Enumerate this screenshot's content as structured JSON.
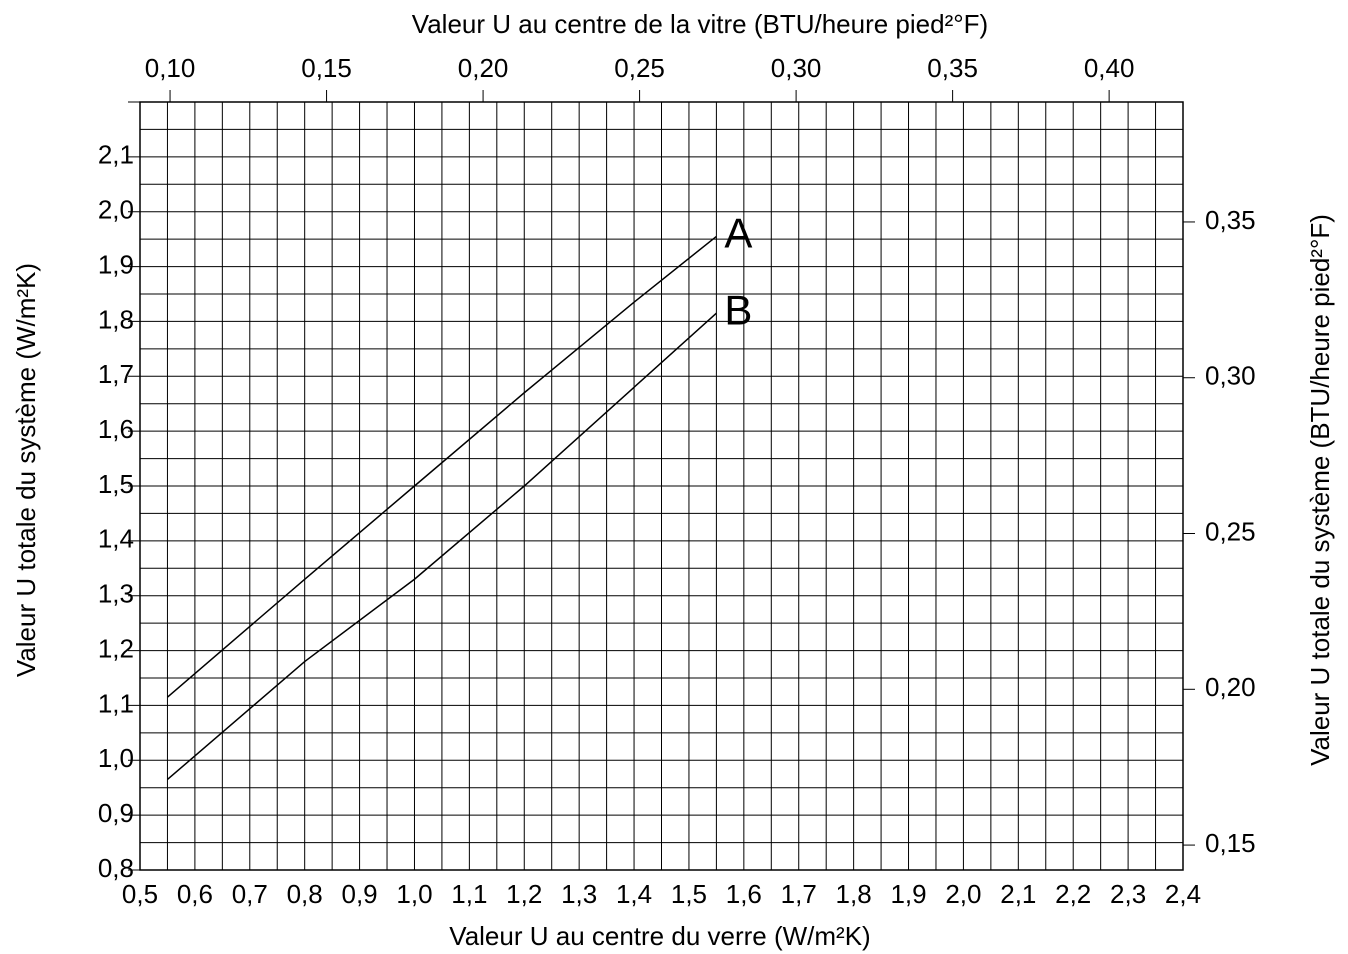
{
  "chart_data": {
    "type": "line",
    "xlabel": "Valeur U au centre du verre (W/m²K)",
    "x2label": "Valeur U au centre de la vitre (BTU/heure pied²°F)",
    "ylabel": "Valeur U totale du système (W/m²K)",
    "y2label": "Valeur U totale du système (BTU/heure pied²°F)",
    "x": [
      0.55,
      0.8,
      1.0,
      1.2,
      1.4,
      1.55
    ],
    "series": [
      {
        "name": "A",
        "color": "#000000",
        "values": [
          1.115,
          1.33,
          1.5,
          1.67,
          1.835,
          1.955
        ]
      },
      {
        "name": "B",
        "color": "#000000",
        "values": [
          0.965,
          1.18,
          1.33,
          1.5,
          1.68,
          1.815
        ]
      }
    ],
    "xlim": [
      0.5,
      2.4
    ],
    "xticks": [
      {
        "value": 0.5,
        "label": "0,5"
      },
      {
        "value": 0.6,
        "label": "0,6"
      },
      {
        "value": 0.7,
        "label": "0,7"
      },
      {
        "value": 0.8,
        "label": "0,8"
      },
      {
        "value": 0.9,
        "label": "0,9"
      },
      {
        "value": 1.0,
        "label": "1,0"
      },
      {
        "value": 1.1,
        "label": "1,1"
      },
      {
        "value": 1.2,
        "label": "1,2"
      },
      {
        "value": 1.3,
        "label": "1,3"
      },
      {
        "value": 1.4,
        "label": "1,4"
      },
      {
        "value": 1.5,
        "label": "1,5"
      },
      {
        "value": 1.6,
        "label": "1,6"
      },
      {
        "value": 1.7,
        "label": "1,7"
      },
      {
        "value": 1.8,
        "label": "1,8"
      },
      {
        "value": 1.9,
        "label": "1,9"
      },
      {
        "value": 2.0,
        "label": "2,0"
      },
      {
        "value": 2.1,
        "label": "2,1"
      },
      {
        "value": 2.2,
        "label": "2,2"
      },
      {
        "value": 2.3,
        "label": "2,3"
      },
      {
        "value": 2.4,
        "label": "2,4"
      }
    ],
    "xminor": [
      0.55,
      0.65,
      0.75,
      0.85,
      0.95,
      1.05,
      1.15,
      1.25,
      1.35,
      1.45,
      1.55,
      1.65,
      1.75,
      1.85,
      1.95,
      2.05,
      2.15,
      2.25,
      2.35
    ],
    "ylim": [
      0.8,
      2.2
    ],
    "yticks": [
      {
        "value": 0.8,
        "label": "0,8"
      },
      {
        "value": 0.9,
        "label": "0,9"
      },
      {
        "value": 1.0,
        "label": "1,0"
      },
      {
        "value": 1.1,
        "label": "1,1"
      },
      {
        "value": 1.2,
        "label": "1,2"
      },
      {
        "value": 1.3,
        "label": "1,3"
      },
      {
        "value": 1.4,
        "label": "1,4"
      },
      {
        "value": 1.5,
        "label": "1,5"
      },
      {
        "value": 1.6,
        "label": "1,6"
      },
      {
        "value": 1.7,
        "label": "1,7"
      },
      {
        "value": 1.8,
        "label": "1,8"
      },
      {
        "value": 1.9,
        "label": "1,9"
      },
      {
        "value": 2.0,
        "label": "2,0"
      },
      {
        "value": 2.1,
        "label": "2,1"
      },
      {
        "value": 2.2,
        "label": ""
      }
    ],
    "yminor": [
      0.85,
      0.95,
      1.05,
      1.15,
      1.25,
      1.35,
      1.45,
      1.55,
      1.65,
      1.75,
      1.85,
      1.95,
      2.05,
      2.15
    ],
    "x2lim": [
      0.0904,
      0.4236
    ],
    "x2ticks": [
      {
        "value": 0.1,
        "label": "0,10"
      },
      {
        "value": 0.15,
        "label": "0,15"
      },
      {
        "value": 0.2,
        "label": "0,20"
      },
      {
        "value": 0.25,
        "label": "0,25"
      },
      {
        "value": 0.3,
        "label": "0,30"
      },
      {
        "value": 0.35,
        "label": "0,35"
      },
      {
        "value": 0.4,
        "label": "0,40"
      }
    ],
    "y2lim": [
      0.142,
      0.3885
    ],
    "y2ticks": [
      {
        "value": 0.15,
        "label": "0,15"
      },
      {
        "value": 0.2,
        "label": "0,20"
      },
      {
        "value": 0.25,
        "label": "0,25"
      },
      {
        "value": 0.3,
        "label": "0,30"
      },
      {
        "value": 0.35,
        "label": "0,35"
      }
    ],
    "grid": true
  }
}
